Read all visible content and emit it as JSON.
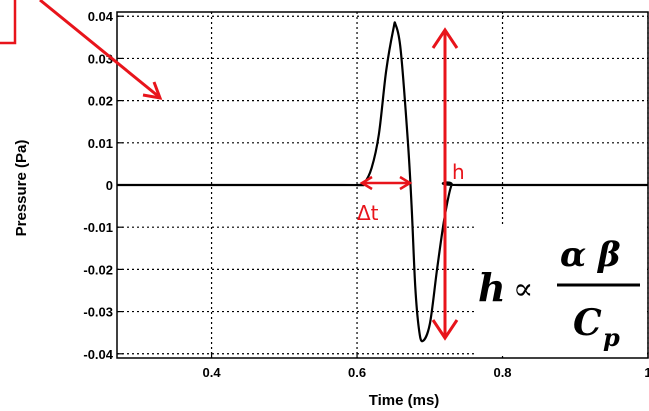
{
  "chart_data": {
    "type": "line",
    "title": "",
    "xlabel": "Time (ms)",
    "ylabel": "Pressure (Pa)",
    "xlim": [
      0.27,
      1.0
    ],
    "ylim": [
      -0.041,
      0.041
    ],
    "x_ticks": [
      0.4,
      0.6,
      0.8,
      1
    ],
    "x_tick_labels": [
      "0.4",
      "0.6",
      "0.8",
      "1"
    ],
    "y_ticks": [
      0.04,
      0.03,
      0.02,
      0.01,
      0,
      -0.01,
      -0.02,
      -0.03,
      -0.04
    ],
    "y_tick_labels": [
      "0.04",
      "0.03",
      "0.02",
      "0.01",
      "0",
      "-0.01",
      "-0.02",
      "-0.03",
      "-0.04"
    ],
    "grid": true,
    "series": [
      {
        "color": "#000000",
        "x": [
          0.27,
          0.58,
          0.6,
          0.61,
          0.62,
          0.63,
          0.64,
          0.65,
          0.653,
          0.66,
          0.67,
          0.675,
          0.68,
          0.685,
          0.69,
          0.7,
          0.71,
          0.72,
          0.73,
          0.74,
          1.0
        ],
        "y": [
          0,
          0,
          0,
          0.0005,
          0.004,
          0.012,
          0.027,
          0.037,
          0.038,
          0.032,
          0.01,
          -0.005,
          -0.024,
          -0.034,
          -0.037,
          -0.033,
          -0.02,
          -0.008,
          0,
          0,
          0
        ]
      }
    ],
    "annotations": {
      "delta_t_label": "Δt",
      "h_label": "h",
      "formula_h": "h",
      "formula_prop": "∝",
      "formula_numerator": "α β",
      "formula_denominator": "C",
      "formula_subscript": "p",
      "accent_color": "#e8141b"
    }
  }
}
